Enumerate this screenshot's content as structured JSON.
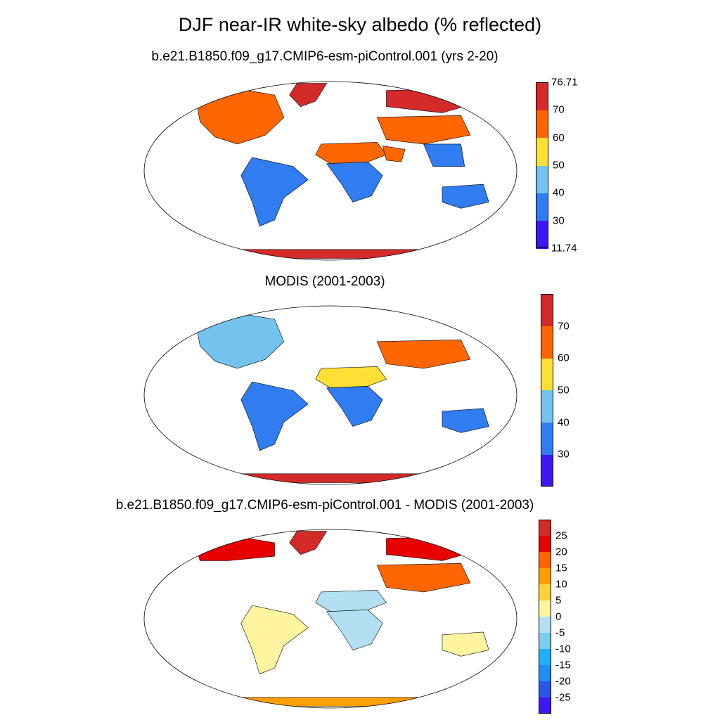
{
  "title": "DJF near-IR white-sky albedo (% reflected)",
  "panels": [
    {
      "title": "b.e21.B1850.f09_g17.CMIP6-esm-piControl.001 (yrs 2-20)"
    },
    {
      "title": "MODIS (2001-2003)"
    },
    {
      "title": "b.e21.B1850.f09_g17.CMIP6-esm-piControl.001 - MODIS (2001-2003)"
    }
  ],
  "chart_data": [
    {
      "type": "heatmap",
      "title": "b.e21.B1850.f09_g17.CMIP6-esm-piControl.001 (yrs 2-20)",
      "projection": "Robinson",
      "colorbar": {
        "levels": [
          30,
          40,
          50,
          60,
          70
        ],
        "min_label": "11.74",
        "max_label": "76.71",
        "colors": [
          "#3f17f5",
          "#2f7df0",
          "#74c3ee",
          "#fddf35",
          "#ff6600",
          "#d42a2a"
        ]
      },
      "regions": [
        {
          "name": "Greenland",
          "class": 6
        },
        {
          "name": "Arctic Siberia",
          "class": 6
        },
        {
          "name": "Antarctica",
          "class": 6
        },
        {
          "name": "Canada / Northern US",
          "class": 4
        },
        {
          "name": "Sahara",
          "class": 4
        },
        {
          "name": "Arabia",
          "class": 4
        },
        {
          "name": "Central Asia",
          "class": 4
        },
        {
          "name": "South America",
          "class": 1
        },
        {
          "name": "Central Africa",
          "class": 1
        },
        {
          "name": "Australia",
          "class": 1
        },
        {
          "name": "Southeast Asia",
          "class": 1
        }
      ]
    },
    {
      "type": "heatmap",
      "title": "MODIS (2001-2003)",
      "projection": "Robinson",
      "colorbar": {
        "levels": [
          30,
          40,
          50,
          60,
          70
        ],
        "colors": [
          "#3f17f5",
          "#2f7df0",
          "#74c3ee",
          "#fddf35",
          "#ff6600",
          "#d42a2a"
        ]
      },
      "regions": [
        {
          "name": "Canada",
          "class": 2
        },
        {
          "name": "Sahara",
          "class": 3
        },
        {
          "name": "Central Asia",
          "class": 4
        },
        {
          "name": "Antarctica",
          "class": 5
        },
        {
          "name": "South America",
          "class": 1
        },
        {
          "name": "Australia",
          "class": 1
        },
        {
          "name": "Central Africa",
          "class": 1
        }
      ]
    },
    {
      "type": "heatmap",
      "title": "b.e21.B1850.f09_g17.CMIP6-esm-piControl.001 - MODIS (2001-2003)",
      "projection": "Robinson",
      "colorbar": {
        "levels": [
          -25,
          -20,
          -15,
          -10,
          -5,
          0,
          5,
          10,
          15,
          20,
          25
        ],
        "colors": [
          "#3f17f5",
          "#2a55e6",
          "#1f8ef5",
          "#1fb0f5",
          "#7ccdf0",
          "#b3dff2",
          "#fff5a0",
          "#fdd23f",
          "#ff9f00",
          "#ff6600",
          "#e60000",
          "#d42a2a"
        ]
      },
      "regions": [
        {
          "name": "Greenland",
          "class": 11
        },
        {
          "name": "Arctic Siberia",
          "class": 10
        },
        {
          "name": "Northern Canada",
          "class": 10
        },
        {
          "name": "Antarctica",
          "class": 8
        },
        {
          "name": "Central Asia",
          "class": 9
        },
        {
          "name": "South America",
          "class": 6
        },
        {
          "name": "Sahara",
          "class": 5
        },
        {
          "name": "Australia",
          "class": 6
        },
        {
          "name": "Central Africa",
          "class": 5
        }
      ]
    }
  ]
}
